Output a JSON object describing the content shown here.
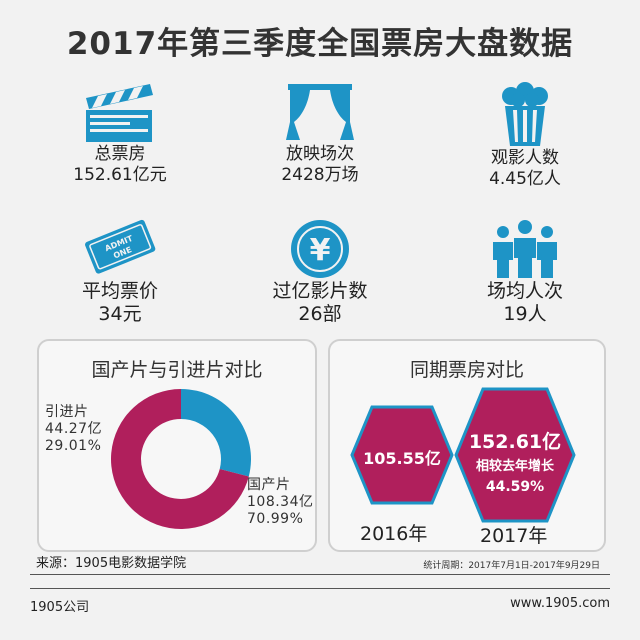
{
  "title": "2017年第三季度全国票房大盘数据",
  "colors": {
    "teal": "#1e94c6",
    "magenta": "#b01f5c",
    "hex_border": "#1e94c6"
  },
  "stats": [
    {
      "icon": "clapperboard-icon",
      "line1": "总票房",
      "line2": "152.61亿元"
    },
    {
      "icon": "curtain-stage-icon",
      "line1": "放映场次",
      "line2": "2428万场"
    },
    {
      "icon": "popcorn-icon",
      "line1": "观影人数",
      "line2": "4.45亿人"
    },
    {
      "icon": "ticket-icon",
      "line1": "平均票价",
      "line2": "34元"
    },
    {
      "icon": "yuan-coin-icon",
      "line1": "过亿影片数",
      "line2": "26部"
    },
    {
      "icon": "audience-people-icon",
      "line1": "场均人次",
      "line2": "19人"
    }
  ],
  "chart_data": [
    {
      "type": "pie",
      "title": "国产片与引进片对比",
      "slices": [
        {
          "name": "引进片",
          "value": 44.27,
          "value_label": "44.27亿",
          "percent": 29.01,
          "percent_label": "29.01%",
          "color": "#1e94c6"
        },
        {
          "name": "国产片",
          "value": 108.34,
          "value_label": "108.34亿",
          "percent": 70.99,
          "percent_label": "70.99%",
          "color": "#b01f5c"
        }
      ]
    },
    {
      "type": "bar",
      "title": "同期票房对比",
      "categories": [
        "2016年",
        "2017年"
      ],
      "values": [
        105.55,
        152.61
      ],
      "value_labels": [
        "105.55亿",
        "152.61亿"
      ],
      "growth_label": "相较去年增长",
      "growth": "44.59%"
    }
  ],
  "source": "来源：1905电影数据学院",
  "period": "统计周期：2017年7月1日-2017年9月29日",
  "footer": {
    "left": "1905公司",
    "right": "www.1905.com"
  }
}
